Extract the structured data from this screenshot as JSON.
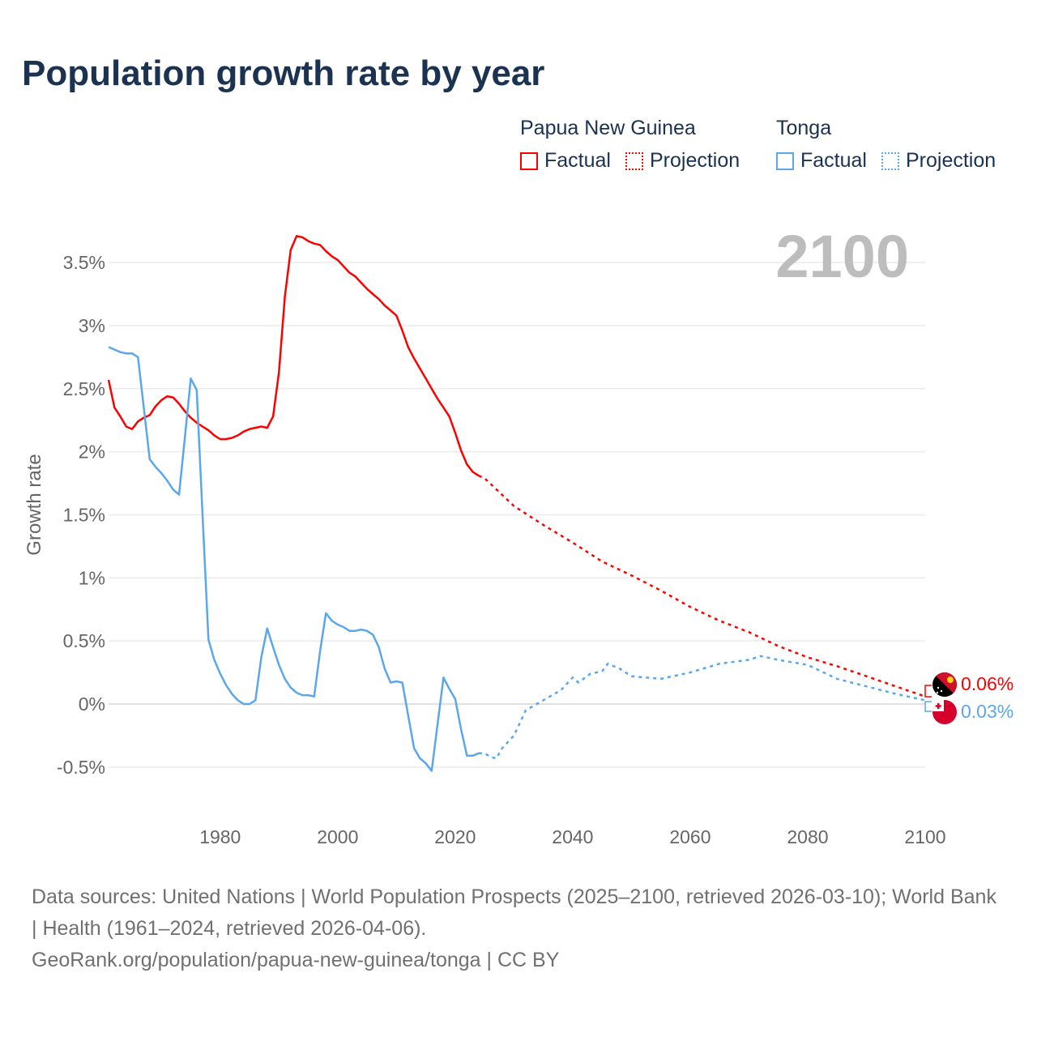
{
  "title": "Population growth rate by year",
  "legend": [
    {
      "country": "Papua New Guinea",
      "factual": "Factual",
      "projection": "Projection",
      "color": "#ff0000"
    },
    {
      "country": "Tonga",
      "factual": "Factual",
      "projection": "Projection",
      "color": "#5ba7ea"
    }
  ],
  "year_label": "2100",
  "end_labels": {
    "png": "0.06%",
    "tonga": "0.03%"
  },
  "footer": {
    "sources": "Data sources: United Nations | World Population Prospects (2025–2100, retrieved 2026-03-10); World Bank | Health (1961–2024, retrieved 2026-04-06).",
    "link": "GeoRank.org/population/papua-new-guinea/tonga | CC BY"
  },
  "chart_data": {
    "type": "line",
    "title": "Population growth rate by year",
    "xlabel": "",
    "ylabel": "Growth rate",
    "xlim": [
      1961,
      2100
    ],
    "ylim": [
      -0.75,
      3.9
    ],
    "xticks": [
      1980,
      2000,
      2020,
      2040,
      2060,
      2080,
      2100
    ],
    "xtick_labels": [
      "1980",
      "2000",
      "2020",
      "2040",
      "2060",
      "2080",
      "2100"
    ],
    "yticks": [
      -0.5,
      0,
      0.5,
      1,
      1.5,
      2,
      2.5,
      3,
      3.5
    ],
    "ytick_labels": [
      "-0.5%",
      "0%",
      "0.5%",
      "1%",
      "1.5%",
      "2%",
      "2.5%",
      "3%",
      "3.5%"
    ],
    "grid": true,
    "legend_position": "top-right",
    "series": [
      {
        "name": "Papua New Guinea – Factual",
        "color": "#ff0000",
        "style": "solid",
        "x": [
          1961,
          1962,
          1963,
          1964,
          1965,
          1966,
          1967,
          1968,
          1969,
          1970,
          1971,
          1972,
          1973,
          1974,
          1975,
          1976,
          1977,
          1978,
          1979,
          1980,
          1981,
          1982,
          1983,
          1984,
          1985,
          1986,
          1987,
          1988,
          1989,
          1990,
          1991,
          1992,
          1993,
          1994,
          1995,
          1996,
          1997,
          1998,
          1999,
          2000,
          2001,
          2002,
          2003,
          2004,
          2005,
          2006,
          2007,
          2008,
          2009,
          2010,
          2011,
          2012,
          2013,
          2014,
          2015,
          2016,
          2017,
          2018,
          2019,
          2020,
          2021,
          2022,
          2023,
          2024
        ],
        "y": [
          2.57,
          2.35,
          2.28,
          2.2,
          2.18,
          2.24,
          2.27,
          2.29,
          2.36,
          2.41,
          2.44,
          2.43,
          2.38,
          2.32,
          2.27,
          2.23,
          2.2,
          2.17,
          2.13,
          2.1,
          2.1,
          2.11,
          2.13,
          2.16,
          2.18,
          2.19,
          2.2,
          2.19,
          2.28,
          2.63,
          3.23,
          3.6,
          3.71,
          3.7,
          3.67,
          3.65,
          3.64,
          3.59,
          3.55,
          3.52,
          3.47,
          3.42,
          3.39,
          3.34,
          3.29,
          3.25,
          3.21,
          3.16,
          3.12,
          3.08,
          2.96,
          2.83,
          2.74,
          2.66,
          2.58,
          2.5,
          2.42,
          2.35,
          2.28,
          2.15,
          2.01,
          1.9,
          1.84,
          1.81
        ]
      },
      {
        "name": "Papua New Guinea – Projection",
        "color": "#ff0000",
        "style": "dotted",
        "x": [
          2024,
          2025,
          2030,
          2035,
          2040,
          2045,
          2050,
          2055,
          2060,
          2065,
          2070,
          2075,
          2080,
          2085,
          2090,
          2095,
          2100
        ],
        "y": [
          1.81,
          1.79,
          1.57,
          1.42,
          1.28,
          1.13,
          1.02,
          0.9,
          0.77,
          0.66,
          0.57,
          0.46,
          0.37,
          0.3,
          0.22,
          0.14,
          0.06
        ]
      },
      {
        "name": "Tonga – Factual",
        "color": "#5ba7ea",
        "style": "solid",
        "x": [
          1961,
          1962,
          1963,
          1964,
          1965,
          1966,
          1967,
          1968,
          1969,
          1970,
          1971,
          1972,
          1973,
          1974,
          1975,
          1976,
          1977,
          1978,
          1979,
          1980,
          1981,
          1982,
          1983,
          1984,
          1985,
          1986,
          1987,
          1988,
          1989,
          1990,
          1991,
          1992,
          1993,
          1994,
          1995,
          1996,
          1997,
          1998,
          1999,
          2000,
          2001,
          2002,
          2003,
          2004,
          2005,
          2006,
          2007,
          2008,
          2009,
          2010,
          2011,
          2012,
          2013,
          2014,
          2015,
          2016,
          2017,
          2018,
          2019,
          2020,
          2021,
          2022,
          2023,
          2024
        ],
        "y": [
          2.83,
          2.81,
          2.79,
          2.78,
          2.78,
          2.75,
          2.35,
          1.94,
          1.88,
          1.83,
          1.77,
          1.7,
          1.66,
          2.12,
          2.58,
          2.49,
          1.5,
          0.51,
          0.35,
          0.24,
          0.15,
          0.08,
          0.03,
          0.0,
          0.0,
          0.03,
          0.37,
          0.6,
          0.45,
          0.31,
          0.2,
          0.13,
          0.09,
          0.07,
          0.07,
          0.06,
          0.42,
          0.72,
          0.66,
          0.63,
          0.61,
          0.58,
          0.58,
          0.59,
          0.58,
          0.55,
          0.45,
          0.28,
          0.17,
          0.18,
          0.17,
          -0.09,
          -0.35,
          -0.43,
          -0.47,
          -0.53,
          -0.16,
          0.21,
          0.12,
          0.04,
          -0.2,
          -0.41,
          -0.41,
          -0.39
        ]
      },
      {
        "name": "Tonga – Projection",
        "color": "#5ba7ea",
        "style": "dotted",
        "x": [
          2024,
          2025,
          2026,
          2027,
          2028,
          2030,
          2032,
          2035,
          2038,
          2040,
          2041,
          2043,
          2045,
          2046,
          2048,
          2050,
          2055,
          2060,
          2065,
          2070,
          2072,
          2075,
          2080,
          2085,
          2090,
          2095,
          2100
        ],
        "y": [
          -0.39,
          -0.39,
          -0.42,
          -0.43,
          -0.35,
          -0.25,
          -0.05,
          0.03,
          0.11,
          0.21,
          0.17,
          0.24,
          0.26,
          0.32,
          0.28,
          0.22,
          0.2,
          0.25,
          0.32,
          0.35,
          0.38,
          0.35,
          0.31,
          0.2,
          0.14,
          0.08,
          0.03
        ]
      }
    ]
  }
}
